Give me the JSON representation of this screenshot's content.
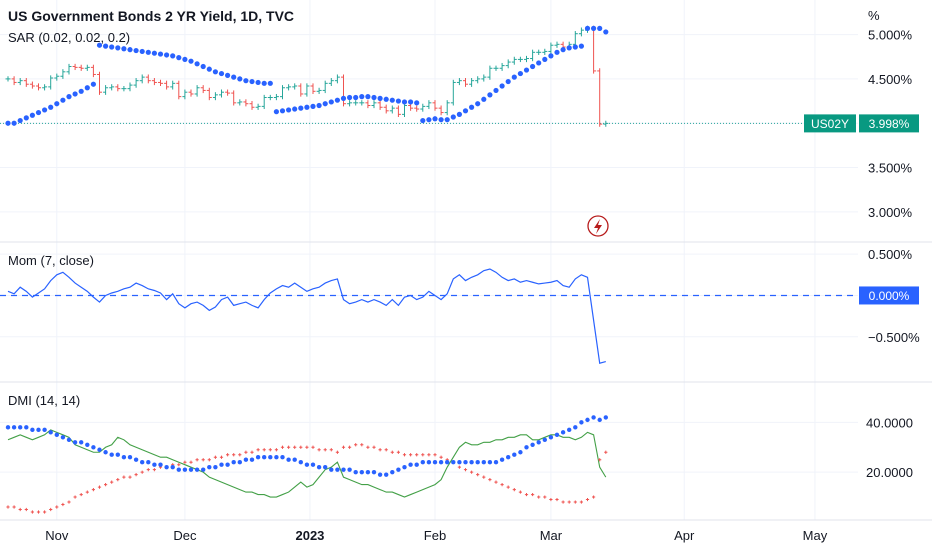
{
  "header": {
    "title": "US Government Bonds 2 YR Yield, 1D, TVC",
    "sar_label": "SAR (0.02, 0.02, 0.2)",
    "mom_label": "Mom (7, close)",
    "dmi_label": "DMI (14, 14)",
    "unit": "%"
  },
  "price_tag": {
    "symbol": "US02Y",
    "value": "3.998%"
  },
  "mom_tag": "0.000%",
  "colors": {
    "up": "#26a69a",
    "down": "#ef5350",
    "sar": "#2962ff",
    "mom": "#2962ff",
    "dmi_plus": "#43a047",
    "dmi_minus": "#ef5350",
    "adx": "#2962ff",
    "tag_green": "#089981",
    "tag_blue": "#2962ff",
    "grid": "#f0f3fa",
    "sep": "#e0e3eb"
  },
  "x_axis": {
    "ticks": [
      "Nov",
      "Dec",
      "2023",
      "Feb",
      "Mar",
      "Apr",
      "May"
    ]
  },
  "chart_data": [
    {
      "type": "candlestick",
      "title": "US Government Bonds 2 YR Yield, 1D, TVC",
      "ylim": [
        2.75,
        5.3
      ],
      "y_ticks": [
        "5.000%",
        "4.500%",
        "4.000%",
        "3.500%",
        "3.000%"
      ],
      "y_tick_values": [
        5.0,
        4.5,
        4.0,
        3.5,
        3.0
      ],
      "last_value": 3.998,
      "dates": [
        "2022-10-20",
        "2022-10-21",
        "2022-10-24",
        "2022-10-25",
        "2022-10-26",
        "2022-10-27",
        "2022-10-28",
        "2022-10-31",
        "2022-11-01",
        "2022-11-02",
        "2022-11-03",
        "2022-11-04",
        "2022-11-07",
        "2022-11-08",
        "2022-11-09",
        "2022-11-10",
        "2022-11-11",
        "2022-11-14",
        "2022-11-15",
        "2022-11-16",
        "2022-11-17",
        "2022-11-18",
        "2022-11-21",
        "2022-11-22",
        "2022-11-23",
        "2022-11-25",
        "2022-11-28",
        "2022-11-29",
        "2022-11-30",
        "2022-12-01",
        "2022-12-02",
        "2022-12-05",
        "2022-12-06",
        "2022-12-07",
        "2022-12-08",
        "2022-12-09",
        "2022-12-12",
        "2022-12-13",
        "2022-12-14",
        "2022-12-15",
        "2022-12-16",
        "2022-12-19",
        "2022-12-20",
        "2022-12-21",
        "2022-12-22",
        "2022-12-23",
        "2022-12-27",
        "2022-12-28",
        "2022-12-29",
        "2022-12-30",
        "2023-01-03",
        "2023-01-04",
        "2023-01-05",
        "2023-01-06",
        "2023-01-09",
        "2023-01-10",
        "2023-01-11",
        "2023-01-12",
        "2023-01-13",
        "2023-01-17",
        "2023-01-18",
        "2023-01-19",
        "2023-01-20",
        "2023-01-23",
        "2023-01-24",
        "2023-01-25",
        "2023-01-26",
        "2023-01-27",
        "2023-01-30",
        "2023-01-31",
        "2023-02-01",
        "2023-02-02",
        "2023-02-03",
        "2023-02-06",
        "2023-02-07",
        "2023-02-08",
        "2023-02-09",
        "2023-02-10",
        "2023-02-13",
        "2023-02-14",
        "2023-02-15",
        "2023-02-16",
        "2023-02-17",
        "2023-02-21",
        "2023-02-22",
        "2023-02-23",
        "2023-02-24",
        "2023-02-27",
        "2023-02-28",
        "2023-03-01",
        "2023-03-02",
        "2023-03-03",
        "2023-03-06",
        "2023-03-07",
        "2023-03-08",
        "2023-03-09",
        "2023-03-10",
        "2023-03-13",
        "2023-03-14"
      ],
      "close": [
        4.5,
        4.46,
        4.48,
        4.44,
        4.42,
        4.4,
        4.41,
        4.51,
        4.53,
        4.58,
        4.64,
        4.63,
        4.62,
        4.63,
        4.55,
        4.35,
        4.4,
        4.41,
        4.39,
        4.39,
        4.43,
        4.48,
        4.52,
        4.48,
        4.46,
        4.45,
        4.41,
        4.45,
        4.3,
        4.35,
        4.33,
        4.4,
        4.37,
        4.29,
        4.32,
        4.35,
        4.34,
        4.23,
        4.24,
        4.22,
        4.18,
        4.19,
        4.29,
        4.29,
        4.3,
        4.4,
        4.41,
        4.42,
        4.33,
        4.42,
        4.36,
        4.37,
        4.45,
        4.48,
        4.52,
        4.22,
        4.23,
        4.23,
        4.23,
        4.2,
        4.23,
        4.18,
        4.14,
        4.17,
        4.1,
        4.2,
        4.17,
        4.16,
        4.19,
        4.23,
        4.17,
        4.12,
        4.23,
        4.46,
        4.48,
        4.44,
        4.48,
        4.5,
        4.52,
        4.62,
        4.62,
        4.65,
        4.69,
        4.72,
        4.72,
        4.73,
        4.8,
        4.8,
        4.81,
        4.88,
        4.89,
        4.86,
        4.89,
        5.01,
        5.05,
        5.07,
        4.59,
        3.99,
        3.998
      ],
      "sar_dates": [
        "2022-10-20",
        "2022-10-21",
        "2022-10-24",
        "2022-10-25",
        "2022-10-26",
        "2022-10-27",
        "2022-10-28",
        "2022-10-31",
        "2022-11-01",
        "2022-11-02",
        "2022-11-03",
        "2022-11-04",
        "2022-11-07",
        "2022-11-08",
        "2022-11-09",
        "2022-11-10",
        "2022-11-11",
        "2022-11-14",
        "2022-11-15",
        "2022-11-16",
        "2022-11-17",
        "2022-11-18",
        "2022-11-21",
        "2022-11-22",
        "2022-11-23",
        "2022-11-25",
        "2022-11-28",
        "2022-11-29",
        "2022-11-30",
        "2022-12-01",
        "2022-12-02",
        "2022-12-05",
        "2022-12-06",
        "2022-12-07",
        "2022-12-08",
        "2022-12-09",
        "2022-12-12",
        "2022-12-13",
        "2022-12-14",
        "2022-12-15",
        "2022-12-16",
        "2022-12-19",
        "2022-12-20",
        "2022-12-21",
        "2022-12-22",
        "2022-12-23",
        "2022-12-27",
        "2022-12-28",
        "2022-12-29",
        "2022-12-30",
        "2023-01-03",
        "2023-01-04",
        "2023-01-05",
        "2023-01-06",
        "2023-01-09",
        "2023-01-10",
        "2023-01-11",
        "2023-01-12",
        "2023-01-13",
        "2023-01-17",
        "2023-01-18",
        "2023-01-19",
        "2023-01-20",
        "2023-01-23",
        "2023-01-24",
        "2023-01-25",
        "2023-01-26",
        "2023-01-27",
        "2023-01-30",
        "2023-01-31",
        "2023-02-01",
        "2023-02-02",
        "2023-02-03",
        "2023-02-06",
        "2023-02-07",
        "2023-02-08",
        "2023-02-09",
        "2023-02-10",
        "2023-02-13",
        "2023-02-14",
        "2023-02-15",
        "2023-02-16",
        "2023-02-17",
        "2023-02-21",
        "2023-02-22",
        "2023-02-23",
        "2023-02-24",
        "2023-02-27",
        "2023-02-28",
        "2023-03-01",
        "2023-03-02",
        "2023-03-03",
        "2023-03-06",
        "2023-03-07",
        "2023-03-08",
        "2023-03-09",
        "2023-03-10",
        "2023-03-13",
        "2023-03-14"
      ],
      "sar": [
        4.0,
        4.0,
        4.03,
        4.06,
        4.09,
        4.12,
        4.15,
        4.18,
        4.22,
        4.26,
        4.3,
        4.33,
        4.36,
        4.4,
        4.44,
        4.88,
        4.87,
        4.86,
        4.85,
        4.84,
        4.83,
        4.82,
        4.81,
        4.8,
        4.79,
        4.78,
        4.77,
        4.76,
        4.74,
        4.72,
        4.7,
        4.67,
        4.64,
        4.61,
        4.58,
        4.56,
        4.54,
        4.52,
        4.5,
        4.48,
        4.47,
        4.46,
        4.45,
        4.45,
        4.13,
        4.14,
        4.15,
        4.16,
        4.17,
        4.18,
        4.19,
        4.2,
        4.22,
        4.24,
        4.26,
        4.28,
        4.29,
        4.29,
        4.3,
        4.3,
        4.29,
        4.28,
        4.27,
        4.26,
        4.25,
        4.24,
        4.24,
        4.23,
        4.03,
        4.04,
        4.05,
        4.04,
        4.04,
        4.07,
        4.1,
        4.14,
        4.18,
        4.22,
        4.27,
        4.32,
        4.37,
        4.42,
        4.47,
        4.52,
        4.56,
        4.6,
        4.64,
        4.68,
        4.72,
        4.76,
        4.8,
        4.83,
        4.85,
        4.86,
        4.87,
        5.07,
        5.07,
        5.07,
        5.03
      ]
    },
    {
      "type": "line",
      "title": "Mom (7, close)",
      "ylim": [
        -0.95,
        0.55
      ],
      "y_ticks": [
        "0.500%",
        "0.000%",
        "−0.500%"
      ],
      "y_tick_values": [
        0.5,
        0.0,
        -0.5
      ],
      "last_value": 0.0,
      "values": [
        0.05,
        0.02,
        0.1,
        0.05,
        -0.02,
        0.03,
        0.08,
        0.18,
        0.25,
        0.28,
        0.22,
        0.15,
        0.1,
        0.05,
        -0.02,
        -0.08,
        0.0,
        0.03,
        0.05,
        0.08,
        0.1,
        0.15,
        0.12,
        0.08,
        0.06,
        0.03,
        -0.05,
        0.02,
        -0.1,
        -0.15,
        -0.1,
        -0.08,
        -0.12,
        -0.18,
        -0.14,
        -0.05,
        -0.02,
        -0.12,
        -0.1,
        -0.08,
        -0.12,
        -0.15,
        -0.05,
        0.03,
        0.08,
        0.12,
        0.1,
        0.15,
        0.1,
        0.05,
        0.08,
        0.1,
        0.15,
        0.18,
        0.2,
        -0.05,
        -0.1,
        -0.08,
        -0.05,
        -0.08,
        -0.05,
        -0.08,
        -0.12,
        -0.05,
        -0.12,
        -0.02,
        0.0,
        -0.05,
        -0.02,
        0.05,
        0.0,
        -0.05,
        0.02,
        0.2,
        0.25,
        0.18,
        0.22,
        0.25,
        0.3,
        0.32,
        0.28,
        0.22,
        0.18,
        0.2,
        0.16,
        0.18,
        0.16,
        0.14,
        0.15,
        0.16,
        0.18,
        0.12,
        0.1,
        0.2,
        0.25,
        0.22,
        -0.3,
        -0.82,
        -0.8
      ]
    },
    {
      "type": "line",
      "title": "DMI (14, 14)",
      "ylim": [
        4,
        53
      ],
      "y_ticks": [
        "40.0000",
        "20.0000"
      ],
      "y_tick_values": [
        40,
        20
      ],
      "series": [
        {
          "key": "plus",
          "values": [
            33,
            34,
            35,
            34,
            33,
            34,
            35,
            37,
            36,
            35,
            34,
            31,
            30,
            29,
            28,
            28,
            30,
            31,
            34,
            33,
            31,
            30,
            29,
            28,
            27,
            26,
            26,
            25,
            24,
            23,
            22,
            21,
            20,
            18,
            17,
            16,
            15,
            14,
            13,
            12,
            12,
            11,
            11,
            10,
            10,
            11,
            12,
            14,
            16,
            14,
            15,
            18,
            21,
            22,
            24,
            18,
            17,
            16,
            15,
            15,
            14,
            13,
            12,
            12,
            11,
            10,
            11,
            12,
            13,
            14,
            15,
            17,
            22,
            26,
            30,
            32,
            31,
            31,
            32,
            32,
            33,
            33,
            34,
            34,
            35,
            35,
            33,
            33,
            34,
            35,
            35,
            34,
            34,
            33,
            34,
            36,
            35,
            22,
            18
          ]
        },
        {
          "key": "minus",
          "values": [
            6,
            6,
            5,
            5,
            4,
            4,
            4,
            5,
            6,
            7,
            8,
            10,
            11,
            12,
            13,
            14,
            15,
            16,
            17,
            18,
            18,
            19,
            20,
            21,
            21,
            22,
            22,
            23,
            23,
            24,
            24,
            25,
            25,
            25,
            26,
            26,
            27,
            27,
            27,
            28,
            28,
            29,
            29,
            29,
            29,
            30,
            30,
            30,
            30,
            30,
            30,
            29,
            29,
            29,
            28,
            30,
            30,
            31,
            31,
            30,
            30,
            29,
            29,
            28,
            28,
            27,
            27,
            27,
            27,
            27,
            27,
            26,
            25,
            24,
            22,
            21,
            20,
            19,
            18,
            17,
            16,
            15,
            14,
            13,
            12,
            11,
            11,
            10,
            10,
            9,
            9,
            8,
            8,
            8,
            8,
            9,
            10,
            25,
            28
          ]
        },
        {
          "key": "adx",
          "values": [
            38,
            38,
            38,
            38,
            37,
            37,
            37,
            36,
            35,
            34,
            33,
            32,
            32,
            31,
            30,
            29,
            28,
            27,
            27,
            26,
            26,
            25,
            24,
            24,
            23,
            23,
            22,
            22,
            21,
            21,
            21,
            21,
            21,
            22,
            22,
            23,
            23,
            24,
            24,
            25,
            25,
            26,
            26,
            26,
            26,
            26,
            25,
            25,
            24,
            23,
            23,
            22,
            22,
            21,
            21,
            21,
            21,
            20,
            20,
            20,
            20,
            19,
            19,
            20,
            21,
            22,
            23,
            23,
            24,
            24,
            24,
            24,
            24,
            24,
            24,
            24,
            24,
            24,
            24,
            24,
            24,
            25,
            26,
            27,
            28,
            30,
            31,
            32,
            33,
            34,
            35,
            36,
            37,
            38,
            40,
            41,
            42,
            41,
            42
          ]
        }
      ]
    }
  ]
}
